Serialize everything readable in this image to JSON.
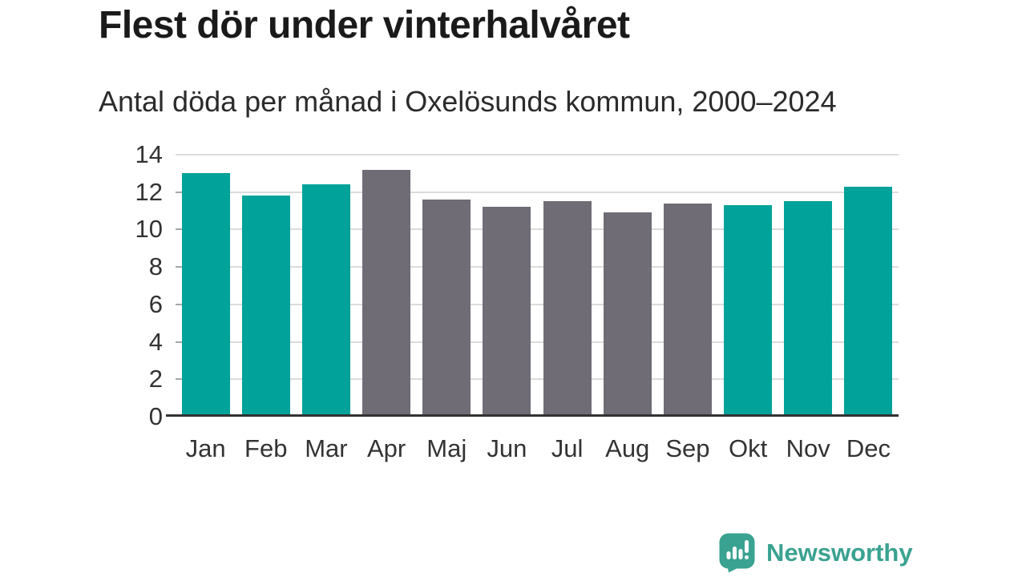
{
  "header": {
    "title": "Flest dör under vinterhalvåret",
    "subtitle": "Antal döda per månad i Oxelösunds kommun, 2000–2024"
  },
  "chart_data": {
    "type": "bar",
    "title": "Flest dör under vinterhalvåret",
    "subtitle": "Antal döda per månad i Oxelösunds kommun, 2000–2024",
    "categories": [
      "Jan",
      "Feb",
      "Mar",
      "Apr",
      "Maj",
      "Jun",
      "Jul",
      "Aug",
      "Sep",
      "Okt",
      "Nov",
      "Dec"
    ],
    "values": [
      13.0,
      11.8,
      12.4,
      13.2,
      11.6,
      11.2,
      11.5,
      10.9,
      11.4,
      11.3,
      11.5,
      12.3
    ],
    "bar_colors": [
      "#00a29a",
      "#00a29a",
      "#00a29a",
      "#6f6c76",
      "#6f6c76",
      "#6f6c76",
      "#6f6c76",
      "#6f6c76",
      "#6f6c76",
      "#00a29a",
      "#00a29a",
      "#00a29a"
    ],
    "highlight_color": "#00a29a",
    "base_color": "#6f6c76",
    "xlabel": "",
    "ylabel": "",
    "ylim": [
      0,
      14
    ],
    "yticks": [
      0,
      2,
      4,
      6,
      8,
      10,
      12,
      14
    ],
    "grid": true,
    "legend": false
  },
  "footer": {
    "brand": "Newsworthy",
    "brand_color": "#3aa290",
    "logo_icon": "bar-chart-speech-bubble-icon"
  },
  "colors": {
    "teal_bar": "#00a29a",
    "gray_bar": "#6f6c76",
    "title_text": "#1a1a1a",
    "subtitle_text": "#2b2b2b",
    "axis_text": "#333333",
    "gridline": "#dcdcdc",
    "tick_mark": "#a8a8a8",
    "axis_line": "#333333",
    "background": "#ffffff"
  }
}
